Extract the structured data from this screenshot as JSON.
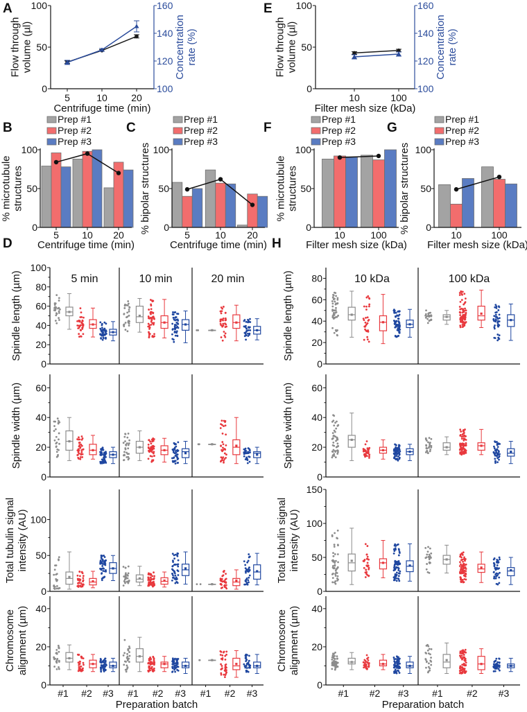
{
  "panel_letters": [
    "A",
    "B",
    "C",
    "D",
    "E",
    "F",
    "G",
    "H"
  ],
  "chart_data": {
    "A": {
      "type": "line",
      "categories": [
        "5",
        "10",
        "20"
      ],
      "xlabel": "Centrifuge time (min)",
      "ylabel_lines": [
        "Flow through",
        "volume (µl)"
      ],
      "y2label_lines": [
        "Concentration",
        "rate (%)"
      ],
      "ylim": [
        0,
        100
      ],
      "yticks": [
        "0",
        "50",
        "100"
      ],
      "y2lim": [
        100,
        160
      ],
      "y2ticks": [
        "100",
        "120",
        "140",
        "160"
      ],
      "series": [
        {
          "name": "Flow through volume",
          "axis": "left",
          "color": "#1a1a1a",
          "marker": "circle",
          "values": [
            32,
            46,
            63
          ],
          "errors": [
            1.5,
            1,
            2
          ]
        },
        {
          "name": "Concentration rate",
          "axis": "right",
          "color": "#2a4b9b",
          "marker": "triangle",
          "values": [
            119,
            128,
            145
          ],
          "errors": [
            1.5,
            1,
            4
          ]
        }
      ]
    },
    "E": {
      "type": "line",
      "categories": [
        "10",
        "100"
      ],
      "xlabel": "Filter mesh size (kDa)",
      "ylabel_lines": [
        "Flow through",
        "volume (µl)"
      ],
      "y2label_lines": [
        "Concentration",
        "rate (%)"
      ],
      "ylim": [
        0,
        100
      ],
      "yticks": [
        "0",
        "50",
        "100"
      ],
      "y2lim": [
        100,
        160
      ],
      "y2ticks": [
        "100",
        "120",
        "140",
        "160"
      ],
      "series": [
        {
          "name": "Flow through volume",
          "axis": "left",
          "color": "#1a1a1a",
          "marker": "circle",
          "values": [
            43,
            46
          ],
          "errors": [
            1.5,
            1.5
          ]
        },
        {
          "name": "Concentration rate",
          "axis": "right",
          "color": "#2a4b9b",
          "marker": "triangle",
          "values": [
            123,
            125
          ],
          "errors": [
            1.5,
            1.5
          ]
        }
      ]
    },
    "B": {
      "type": "bar",
      "categories": [
        "5",
        "10",
        "20"
      ],
      "xlabel": "Centrifuge time (min)",
      "ylabel_lines": [
        "% microtubule",
        "structures"
      ],
      "ylim": [
        0,
        100
      ],
      "yticks": [
        "0",
        "50",
        "100"
      ],
      "legend": [
        "Prep #1",
        "Prep #2",
        "Prep #3"
      ],
      "series": [
        {
          "name": "Prep #1",
          "color": "#a3a3a3",
          "values": [
            79,
            88,
            51
          ]
        },
        {
          "name": "Prep #2",
          "color": "#f26d6d",
          "values": [
            96,
            98,
            84
          ]
        },
        {
          "name": "Prep #3",
          "color": "#5a7cc2",
          "values": [
            78,
            100,
            74
          ]
        }
      ],
      "mean": [
        84,
        95,
        70
      ]
    },
    "C": {
      "type": "bar",
      "categories": [
        "5",
        "10",
        "20"
      ],
      "xlabel": "Centrifuge time (min)",
      "ylabel_lines": [
        "% bipolar structures"
      ],
      "ylim": [
        0,
        100
      ],
      "yticks": [
        "0",
        "50",
        "100"
      ],
      "legend": [
        "Prep #1",
        "Prep #2",
        "Prep #3"
      ],
      "series": [
        {
          "name": "Prep #1",
          "color": "#a3a3a3",
          "values": [
            58,
            74,
            3
          ]
        },
        {
          "name": "Prep #2",
          "color": "#f26d6d",
          "values": [
            40,
            57,
            43
          ]
        },
        {
          "name": "Prep #3",
          "color": "#5a7cc2",
          "values": [
            50,
            56,
            40
          ]
        }
      ],
      "mean": [
        49,
        62,
        29
      ]
    },
    "F": {
      "type": "bar",
      "categories": [
        "10",
        "100"
      ],
      "xlabel": "Filter mesh size (kDa)",
      "ylabel_lines": [
        "% microtubule",
        "structures"
      ],
      "ylim": [
        0,
        100
      ],
      "yticks": [
        "0",
        "50",
        "100"
      ],
      "legend": [
        "Prep #1",
        "Prep #2",
        "Prep #3"
      ],
      "series": [
        {
          "name": "Prep #1",
          "color": "#a3a3a3",
          "values": [
            88,
            93
          ]
        },
        {
          "name": "Prep #2",
          "color": "#f26d6d",
          "values": [
            92,
            87
          ]
        },
        {
          "name": "Prep #3",
          "color": "#5a7cc2",
          "values": [
            91,
            100
          ]
        }
      ],
      "mean": [
        90,
        92
      ]
    },
    "G": {
      "type": "bar",
      "categories": [
        "10",
        "100"
      ],
      "xlabel": "Filter mesh size (kDa)",
      "ylabel_lines": [
        "% bipolar structures"
      ],
      "ylim": [
        0,
        100
      ],
      "yticks": [
        "0",
        "50",
        "100"
      ],
      "legend": [
        "Prep #1",
        "Prep #2",
        "Prep #3"
      ],
      "series": [
        {
          "name": "Prep #1",
          "color": "#a3a3a3",
          "values": [
            55,
            78
          ]
        },
        {
          "name": "Prep #2",
          "color": "#f26d6d",
          "values": [
            30,
            62
          ]
        },
        {
          "name": "Prep #3",
          "color": "#5a7cc2",
          "values": [
            63,
            56
          ]
        }
      ],
      "mean": [
        49,
        65
      ]
    },
    "D": {
      "type": "box",
      "group_headers": [
        "5 min",
        "10 min",
        "20 min"
      ],
      "xticks": [
        "#1",
        "#2",
        "#3"
      ],
      "xlabel": "Preparation batch",
      "colors": [
        "#8c8c8c",
        "#e8383d",
        "#1f47a0"
      ],
      "n": [
        [
          25,
          35,
          50
        ],
        [
          30,
          50,
          45
        ],
        [
          2,
          35,
          35
        ]
      ],
      "stats_order": [
        "min",
        "q1",
        "median",
        "q3",
        "max",
        "mean"
      ],
      "rows": [
        {
          "ylabel_lines": [
            "Spindle length (µm)"
          ],
          "ylim": [
            0,
            100
          ],
          "yticks": [
            "0",
            "20",
            "40",
            "60",
            "80",
            "100"
          ],
          "groups": [
            [
              [
                36,
                50,
                54,
                59,
                73,
                54
              ],
              [
                28,
                37,
                41,
                46,
                58,
                41
              ],
              [
                24,
                30,
                33,
                36,
                44,
                33
              ]
            ],
            [
              [
                33,
                43,
                49,
                60,
                68,
                50
              ],
              [
                27,
                37,
                43,
                50,
                67,
                43
              ],
              [
                22,
                35,
                41,
                46,
                55,
                41
              ]
            ],
            [
              [
                35,
                35,
                35,
                35,
                35,
                35
              ],
              [
                24,
                37,
                43,
                51,
                61,
                43
              ],
              [
                25,
                31,
                35,
                39,
                47,
                35
              ]
            ]
          ]
        },
        {
          "ylabel_lines": [
            "Spindle width (µm)"
          ],
          "ylim": [
            0,
            69
          ],
          "yticks": [
            "0",
            "20",
            "40",
            "60"
          ],
          "groups": [
            [
              [
                11,
                18,
                24,
                31,
                40,
                24
              ],
              [
                12,
                15,
                18,
                22,
                28,
                18
              ],
              [
                9,
                13,
                15,
                17,
                20,
                15
              ]
            ],
            [
              [
                11,
                16,
                20,
                24,
                31,
                20
              ],
              [
                10,
                15,
                18,
                21,
                26,
                18
              ],
              [
                9,
                13,
                17,
                19,
                24,
                16
              ]
            ],
            [
              [
                22,
                22,
                22,
                22,
                22,
                22
              ],
              [
                9,
                15,
                20,
                25,
                40,
                21
              ],
              [
                9,
                13,
                16,
                17,
                20,
                15
              ]
            ]
          ]
        },
        {
          "ylabel_lines": [
            "Total tubulin signal",
            "intensity (AU)"
          ],
          "ylim": [
            0,
            142
          ],
          "yticks": [
            "0",
            "50",
            "100"
          ],
          "groups": [
            [
              [
                3,
                10,
                18,
                27,
                55,
                20
              ],
              [
                5,
                9,
                13,
                18,
                28,
                14
              ],
              [
                15,
                25,
                32,
                40,
                50,
                32
              ]
            ],
            [
              [
                8,
                13,
                17,
                23,
                35,
                18
              ],
              [
                6,
                10,
                14,
                19,
                27,
                15
              ],
              [
                10,
                22,
                30,
                38,
                55,
                32
              ]
            ],
            [
              [
                10,
                10,
                10,
                10,
                10,
                10
              ],
              [
                3,
                8,
                13,
                18,
                30,
                15
              ],
              [
                9,
                17,
                27,
                37,
                53,
                28
              ]
            ]
          ]
        },
        {
          "ylabel_lines": [
            "Chromosome",
            "alignment (µm)"
          ],
          "ylim": [
            0,
            46.5
          ],
          "yticks": [
            "0",
            "20",
            "40"
          ],
          "groups": [
            [
              [
                8,
                12,
                14,
                17,
                21,
                14
              ],
              [
                7,
                9,
                11,
                13,
                16,
                11
              ],
              [
                7,
                9,
                10,
                12,
                14,
                10
              ]
            ],
            [
              [
                7,
                12,
                15,
                19,
                25,
                15
              ],
              [
                7,
                9,
                11,
                12,
                15,
                11
              ],
              [
                6,
                9,
                10,
                12,
                14,
                10
              ]
            ],
            [
              [
                13,
                13,
                13,
                13,
                13,
                13
              ],
              [
                4,
                8,
                10,
                14,
                18,
                11
              ],
              [
                6,
                9,
                10,
                12,
                16,
                10
              ]
            ]
          ]
        }
      ]
    },
    "H": {
      "type": "box",
      "group_headers": [
        "10 kDa",
        "100 kDa"
      ],
      "xticks": [
        "#1",
        "#2",
        "#3"
      ],
      "xlabel": "Preparation batch",
      "colors": [
        "#8c8c8c",
        "#e8383d",
        "#1f47a0"
      ],
      "n": [
        [
          50,
          30,
          70
        ],
        [
          25,
          80,
          45
        ]
      ],
      "stats_order": [
        "min",
        "q1",
        "median",
        "q3",
        "max",
        "mean"
      ],
      "rows": [
        {
          "ylabel_lines": [
            "Spindle length (µm)"
          ],
          "ylim": [
            0,
            90
          ],
          "yticks": [
            "0",
            "20",
            "40",
            "60",
            "80"
          ],
          "groups": [
            [
              [
                25,
                41,
                46,
                53,
                68,
                46
              ],
              [
                19,
                31,
                39,
                45,
                65,
                39
              ],
              [
                25,
                34,
                37,
                41,
                51,
                37
              ]
            ],
            [
              [
                37,
                41,
                44,
                46,
                50,
                44
              ],
              [
                34,
                41,
                45,
                54,
                69,
                47
              ],
              [
                22,
                35,
                41,
                46,
                56,
                41
              ]
            ]
          ]
        },
        {
          "ylabel_lines": [
            "Spindle width (µm)"
          ],
          "ylim": [
            0,
            69
          ],
          "yticks": [
            "0",
            "20",
            "40",
            "60"
          ],
          "groups": [
            [
              [
                11,
                20,
                25,
                28,
                43,
                25
              ],
              [
                12,
                16,
                18,
                20,
                25,
                18
              ],
              [
                11,
                15,
                17,
                19,
                22,
                17
              ]
            ],
            [
              [
                15,
                18,
                20,
                23,
                27,
                20
              ],
              [
                15,
                18,
                21,
                23,
                32,
                21
              ],
              [
                9,
                14,
                16,
                19,
                24,
                17
              ]
            ]
          ]
        },
        {
          "ylabel_lines": [
            "Total tubulin signal",
            "intensity (AU)"
          ],
          "ylim": [
            0,
            150
          ],
          "yticks": [
            "0",
            "50",
            "100",
            "150"
          ],
          "groups": [
            [
              [
                10,
                30,
                42,
                55,
                93,
                45
              ],
              [
                20,
                33,
                42,
                48,
                75,
                42
              ],
              [
                15,
                29,
                37,
                45,
                70,
                38
              ]
            ],
            [
              [
                27,
                40,
                47,
                53,
                68,
                47
              ],
              [
                13,
                28,
                33,
                40,
                58,
                35
              ],
              [
                10,
                23,
                30,
                35,
                50,
                31
              ]
            ]
          ]
        },
        {
          "ylabel_lines": [
            "Chromosome",
            "alignment (µm)"
          ],
          "ylim": [
            0,
            46.5
          ],
          "yticks": [
            "0",
            "20",
            "40"
          ],
          "groups": [
            [
              [
                8,
                11,
                12,
                14,
                17,
                12
              ],
              [
                8,
                10,
                11,
                13,
                16,
                11
              ],
              [
                6,
                9,
                10,
                12,
                15,
                10
              ]
            ],
            [
              [
                6,
                9,
                12,
                16,
                22,
                13
              ],
              [
                6,
                8,
                11,
                15,
                19,
                11
              ],
              [
                7,
                9,
                10,
                11,
                14,
                10
              ]
            ]
          ]
        }
      ]
    }
  }
}
